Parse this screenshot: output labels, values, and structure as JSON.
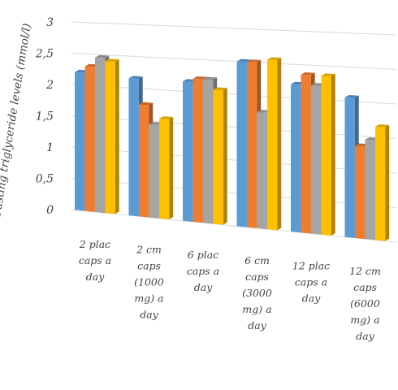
{
  "chart_data": {
    "type": "bar",
    "title": "",
    "ylabel": "Fasting triglyceride levels (mmol/l)",
    "xlabel": "",
    "ylim": [
      0,
      3
    ],
    "yticks": [
      "0",
      "0,5",
      "1",
      "1,5",
      "2",
      "2,5",
      "3"
    ],
    "ytick_values": [
      0,
      0.5,
      1,
      1.5,
      2,
      2.5,
      3
    ],
    "categories": [
      [
        "2 plac",
        "caps a",
        "day"
      ],
      [
        "2 cm",
        "caps",
        "(1000",
        "mg) a",
        "day"
      ],
      [
        "6 plac",
        "caps a",
        "day"
      ],
      [
        "6 cm",
        "caps",
        "(3000",
        "mg) a",
        "day"
      ],
      [
        "12 plac",
        "caps a",
        "day"
      ],
      [
        "12 cm",
        "caps",
        "(6000",
        "mg) a",
        "day"
      ]
    ],
    "series": [
      {
        "values": [
          2.2,
          2.15,
          2.15,
          2.5,
          2.2,
          2.05
        ]
      },
      {
        "values": [
          2.3,
          1.75,
          2.2,
          2.5,
          2.35,
          1.35
        ]
      },
      {
        "values": [
          2.45,
          1.45,
          2.2,
          1.75,
          2.2,
          1.45
        ]
      },
      {
        "values": [
          2.4,
          1.55,
          2.05,
          2.55,
          2.35,
          1.65
        ]
      }
    ],
    "colors": [
      "#5B9BD5",
      "#ED7D31",
      "#A5A5A5",
      "#FFC000"
    ],
    "grid": true,
    "legend": "none"
  }
}
